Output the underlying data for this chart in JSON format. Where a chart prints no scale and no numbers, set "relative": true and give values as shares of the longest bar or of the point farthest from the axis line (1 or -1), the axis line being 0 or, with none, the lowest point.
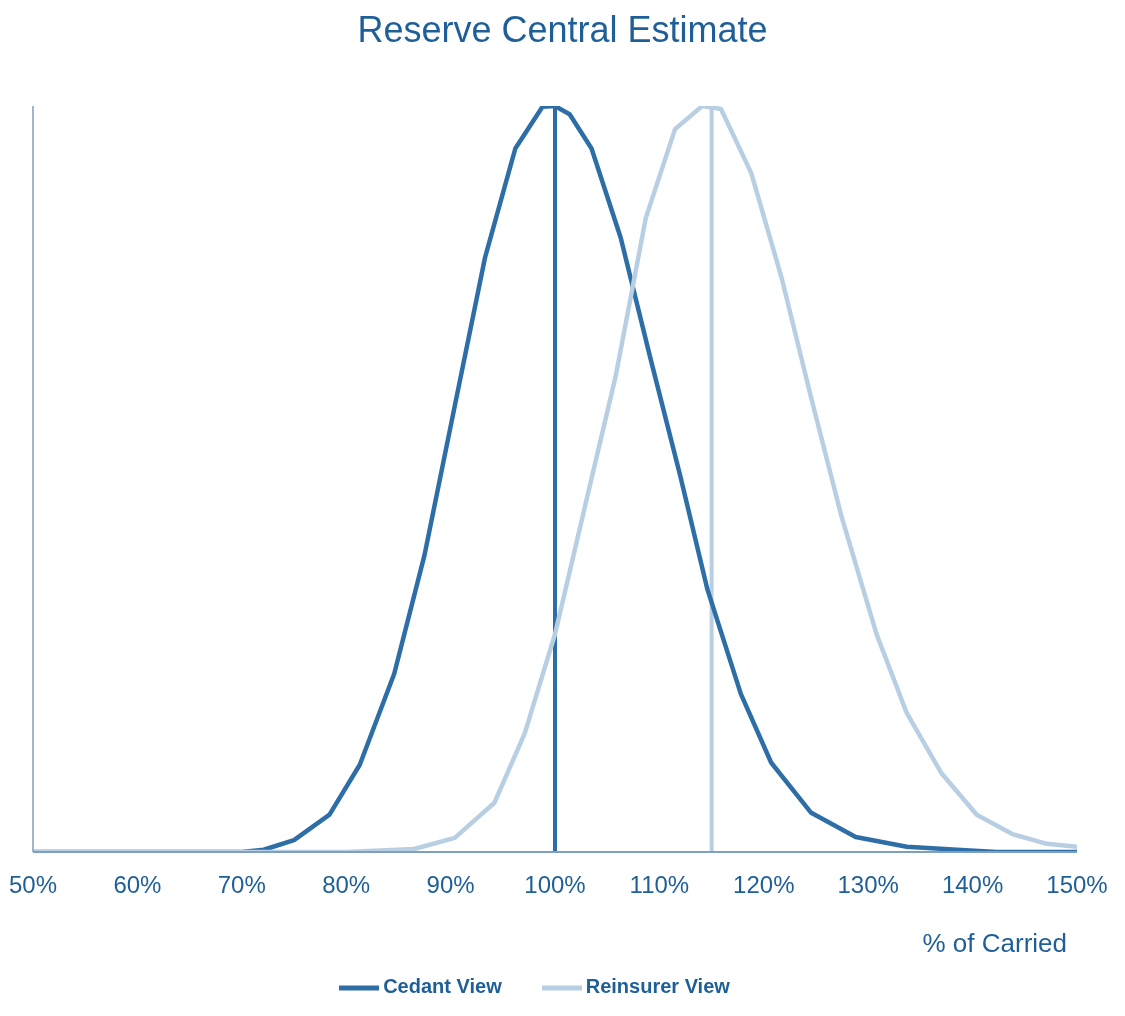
{
  "chart_data": {
    "type": "line",
    "title": "Reserve Central Estimate",
    "xlabel": "% of Carried",
    "relative": true,
    "xlim": [
      50,
      150
    ],
    "xticks": [
      {
        "value": 50,
        "label": "50%"
      },
      {
        "value": 60,
        "label": "60%"
      },
      {
        "value": 70,
        "label": "70%"
      },
      {
        "value": 80,
        "label": "80%"
      },
      {
        "value": 90,
        "label": "90%"
      },
      {
        "value": 100,
        "label": "100%"
      },
      {
        "value": 110,
        "label": "110%"
      },
      {
        "value": 120,
        "label": "120%"
      },
      {
        "value": 130,
        "label": "130%"
      },
      {
        "value": 140,
        "label": "140%"
      },
      {
        "value": 150,
        "label": "150%"
      }
    ],
    "series": [
      {
        "name": "Cedant View",
        "color": "#2e6ea6",
        "x": [
          50,
          60,
          70,
          72.1,
          75,
          78.4,
          81.3,
          84.6,
          87.5,
          90.4,
          93.3,
          96.2,
          98.8,
          100,
          101.4,
          103.5,
          106.3,
          109.1,
          112,
          114.6,
          117.8,
          120.7,
          124.5,
          128.8,
          133.7,
          138.5,
          142.3,
          150
        ],
        "values": [
          0,
          0,
          0,
          0.003,
          0.016,
          0.05,
          0.117,
          0.239,
          0.398,
          0.598,
          0.797,
          0.943,
          0.999,
          1,
          0.989,
          0.943,
          0.823,
          0.664,
          0.504,
          0.352,
          0.212,
          0.12,
          0.053,
          0.02,
          0.007,
          0.003,
          0,
          0
        ]
      },
      {
        "name": "Reinsurer View",
        "color": "#b8cfe3",
        "x": [
          50,
          60,
          70,
          80,
          86.5,
          90.4,
          94.2,
          97.1,
          100,
          102.9,
          105.8,
          108.7,
          111.5,
          114.1,
          115.9,
          118.8,
          121.7,
          124.5,
          127.4,
          130.8,
          133.7,
          137,
          140.4,
          143.8,
          147.1,
          150
        ],
        "values": [
          0,
          0,
          0,
          0,
          0.004,
          0.019,
          0.066,
          0.159,
          0.292,
          0.465,
          0.637,
          0.85,
          0.969,
          1,
          0.996,
          0.91,
          0.77,
          0.611,
          0.452,
          0.292,
          0.186,
          0.106,
          0.05,
          0.024,
          0.011,
          0.007
        ]
      }
    ],
    "ref_lines": [
      {
        "axis": "x",
        "value": 100,
        "color": "#2e6ea6"
      },
      {
        "axis": "x",
        "value": 115,
        "color": "#b8cfe3"
      }
    ],
    "grid": false,
    "legend": "bottom",
    "marker": "none",
    "line_style": "solid"
  }
}
